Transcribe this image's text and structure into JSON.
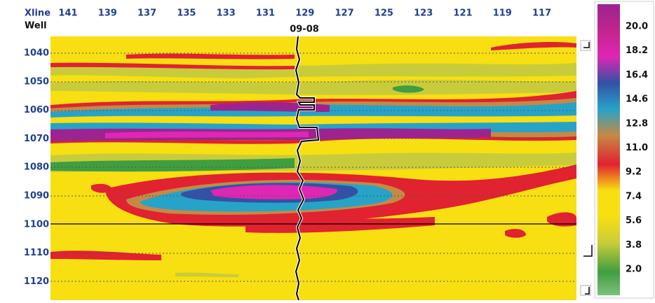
{
  "header": {
    "xline_label": "Xline",
    "well_label": "Well",
    "xlines": [
      "141",
      "139",
      "137",
      "135",
      "133",
      "131",
      "129",
      "127",
      "125",
      "123",
      "121",
      "119",
      "117"
    ],
    "well_name": "09-08"
  },
  "depth_labels": [
    "1040",
    "1050",
    "1060",
    "1070",
    "1080",
    "1090",
    "1100",
    "1110",
    "1120"
  ],
  "colorbar": {
    "labels": [
      "20.0",
      "18.2",
      "16.4",
      "14.6",
      "12.8",
      "11.0",
      "9.2",
      "7.4",
      "5.6",
      "3.8",
      "2.0"
    ]
  }
}
